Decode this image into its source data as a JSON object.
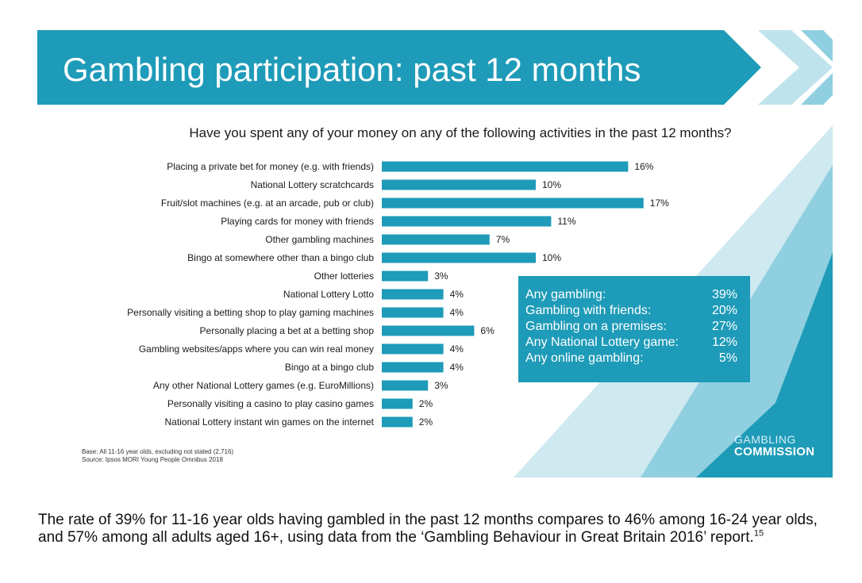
{
  "slide": {
    "title": "Gambling participation: past 12 months",
    "question": "Have you spent any of your money on any of the following activities in the past 12 months?",
    "colors": {
      "accent": "#1e9bb8",
      "accent_light": "#bfe3ec"
    }
  },
  "chart_data": {
    "type": "bar",
    "orientation": "horizontal",
    "title": "Have you spent any of your money on any of the following activities in the past 12 months?",
    "categories": [
      "Placing a private bet for money (e.g. with friends)",
      "National Lottery scratchcards",
      "Fruit/slot machines (e.g. at an arcade, pub or club)",
      "Playing cards for money with friends",
      "Other gambling machines",
      "Bingo at somewhere other than a bingo club",
      "Other lotteries",
      "National Lottery Lotto",
      "Personally visiting a betting shop to play gaming machines",
      "Personally placing a bet at a betting shop",
      "Gambling websites/apps where you can win real money",
      "Bingo at a bingo club",
      "Any other National Lottery games (e.g. EuroMillions)",
      "Personally visiting a casino to play casino games",
      "National Lottery instant win games on the internet"
    ],
    "values": [
      16,
      10,
      17,
      11,
      7,
      10,
      3,
      4,
      4,
      6,
      4,
      4,
      3,
      2,
      2
    ],
    "value_labels": [
      "16%",
      "10%",
      "17%",
      "11%",
      "7%",
      "10%",
      "3%",
      "4%",
      "4%",
      "6%",
      "4%",
      "4%",
      "3%",
      "2%",
      "2%"
    ],
    "unit": "%",
    "xlim": [
      0,
      17
    ],
    "grid": false,
    "color": "#1e9bb8"
  },
  "stats_box": [
    {
      "label": "Any gambling:",
      "value": "39%"
    },
    {
      "label": "Gambling with friends:",
      "value": "20%"
    },
    {
      "label": "Gambling on a premises:",
      "value": "27%"
    },
    {
      "label": "Any National Lottery game:",
      "value": "12%"
    },
    {
      "label": "Any online gambling:",
      "value": "5%"
    }
  ],
  "footnote": {
    "base": "Base: All 11-16 year olds, excluding not stated (2,716)",
    "source": "Source: Ipsos MORI Young People Omnibus 2018"
  },
  "logo": {
    "line1": "GAMBLING",
    "line2": "COMMISSION"
  },
  "summary": {
    "text": "The rate of 39% for 11-16 year olds having gambled in the past 12 months compares to 46% among 16-24 year olds, and 57% among all adults aged 16+, using data from the ‘Gambling Behaviour in Great Britain 2016’ report.",
    "footnote_ref": "15"
  }
}
